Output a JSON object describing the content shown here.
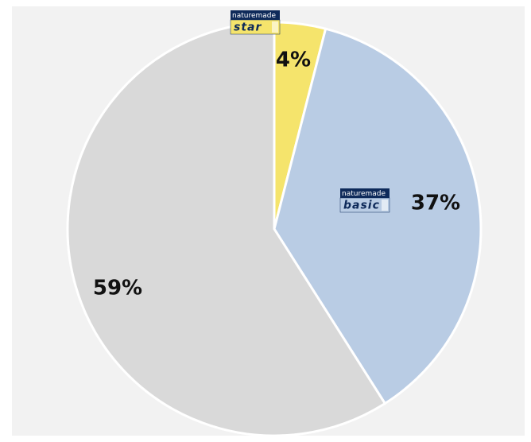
{
  "chart_data": {
    "type": "pie",
    "brand": "naturemade",
    "categories": [
      "star",
      "basic",
      null
    ],
    "values": [
      4,
      37,
      59
    ],
    "value_labels": [
      "4%",
      "37%",
      "59%"
    ],
    "colors": [
      "#f5e46c",
      "#b9cce4",
      "#d9d9d9"
    ]
  }
}
